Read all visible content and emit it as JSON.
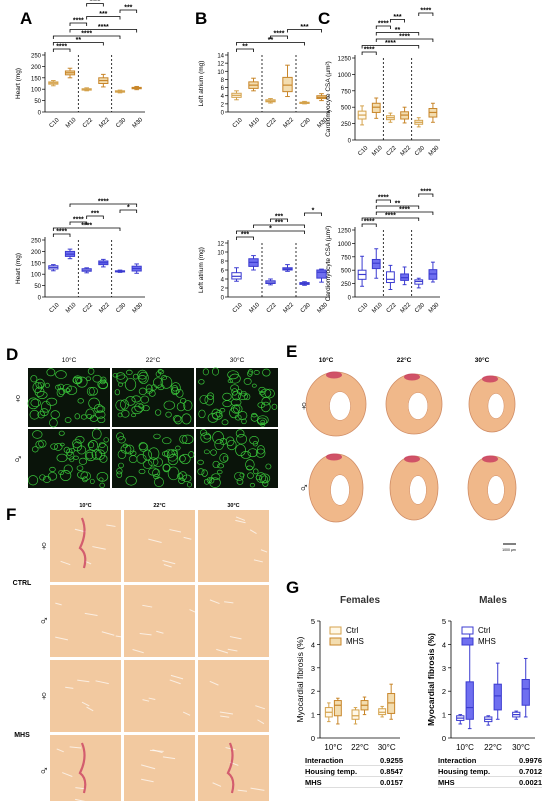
{
  "colors": {
    "female_ctrl": "#d4a24c",
    "female_mhs": "#c8862a",
    "female_fill": "#f3ddb0",
    "male_ctrl": "#3b3bd0",
    "male_mhs": "#4a4ae6",
    "male_fill": "#6f6ff0",
    "stain_green": "#39c43a",
    "tissue": "#f0b88a",
    "stain_pink": "#c8385e",
    "sig": "#000000"
  },
  "panel_letters": [
    "A",
    "B",
    "C",
    "D",
    "E",
    "F",
    "G"
  ],
  "panel_d": {
    "col_labels": [
      "10°C",
      "22°C",
      "30°C"
    ],
    "row_symbols": [
      "♀",
      "♂"
    ]
  },
  "panel_e": {
    "col_labels": [
      "10°C",
      "22°C",
      "30°C"
    ],
    "row_symbols": [
      "♀",
      "♂"
    ],
    "scale_label": "1000 µm"
  },
  "panel_f": {
    "col_labels": [
      "10°C",
      "22°C",
      "30°C"
    ],
    "group_labels": [
      "CTRL",
      "MHS"
    ],
    "row_symbols": [
      "♀",
      "♂",
      "♀",
      "♂"
    ]
  },
  "chart_data": [
    {
      "id": "A-female",
      "type": "box",
      "ylabel": "Heart (mg)",
      "ylim": [
        0,
        250
      ],
      "yticks": [
        0,
        50,
        100,
        150,
        200,
        250
      ],
      "categories": [
        "C10",
        "M10",
        "C22",
        "M22",
        "C30",
        "M30"
      ],
      "boxes": [
        [
          115,
          122,
          127,
          132,
          138
        ],
        [
          150,
          163,
          172,
          180,
          192
        ],
        [
          93,
          96,
          99,
          102,
          106
        ],
        [
          110,
          125,
          138,
          150,
          165
        ],
        [
          84,
          87,
          90,
          93,
          96
        ],
        [
          98,
          102,
          105,
          108,
          112
        ]
      ],
      "brackets": [
        {
          "from": 0,
          "to": 1,
          "label": "****"
        },
        {
          "from": 0,
          "to": 3,
          "label": "**"
        },
        {
          "from": 0,
          "to": 4,
          "label": "****"
        },
        {
          "from": 1,
          "to": 5,
          "label": "****"
        },
        {
          "from": 1,
          "to": 2,
          "label": "****"
        },
        {
          "from": 2,
          "to": 4,
          "label": "***"
        },
        {
          "from": 4,
          "to": 5,
          "label": "***"
        },
        {
          "from": 2,
          "to": 3,
          "label": "****"
        }
      ]
    },
    {
      "id": "B-female",
      "type": "box",
      "ylabel": "Left atrium (mg)",
      "ylim": [
        0,
        14
      ],
      "yticks": [
        0,
        2,
        4,
        6,
        8,
        10,
        12,
        14
      ],
      "categories": [
        "C10",
        "M10",
        "C22",
        "M22",
        "C30",
        "M30"
      ],
      "boxes": [
        [
          3,
          3.6,
          4.1,
          4.6,
          5.2
        ],
        [
          5.2,
          5.8,
          6.6,
          7.4,
          8.3
        ],
        [
          2.2,
          2.5,
          2.7,
          3,
          3.3
        ],
        [
          3.8,
          5,
          6.6,
          8.5,
          11.5
        ],
        [
          2,
          2.1,
          2.3,
          2.4,
          2.6
        ],
        [
          2.8,
          3.3,
          3.6,
          4,
          4.5
        ]
      ],
      "brackets": [
        {
          "from": 0,
          "to": 1,
          "label": "**"
        },
        {
          "from": 0,
          "to": 4,
          "label": "**"
        },
        {
          "from": 2,
          "to": 3,
          "label": "****"
        },
        {
          "from": 3,
          "to": 5,
          "label": "***"
        }
      ]
    },
    {
      "id": "C-female",
      "type": "box",
      "ylabel": "Cardiomyocyte CSA (µm²)",
      "ylim": [
        0,
        1250
      ],
      "yticks": [
        0,
        250,
        500,
        750,
        1000,
        1250
      ],
      "categories": [
        "C10",
        "M10",
        "C22",
        "M22",
        "C30",
        "M30"
      ],
      "boxes": [
        [
          230,
          320,
          380,
          440,
          520
        ],
        [
          330,
          420,
          500,
          560,
          640
        ],
        [
          270,
          310,
          340,
          370,
          410
        ],
        [
          260,
          320,
          380,
          430,
          500
        ],
        [
          200,
          240,
          270,
          300,
          340
        ],
        [
          270,
          350,
          420,
          480,
          560
        ]
      ],
      "brackets": [
        {
          "from": 0,
          "to": 1,
          "label": "****"
        },
        {
          "from": 0,
          "to": 4,
          "label": "****"
        },
        {
          "from": 1,
          "to": 5,
          "label": "****"
        },
        {
          "from": 1,
          "to": 4,
          "label": "**"
        },
        {
          "from": 1,
          "to": 2,
          "label": "****"
        },
        {
          "from": 2,
          "to": 3,
          "label": "***"
        },
        {
          "from": 4,
          "to": 5,
          "label": "****"
        }
      ]
    },
    {
      "id": "A-male",
      "type": "box",
      "ylabel": "Heart (mg)",
      "ylim": [
        0,
        250
      ],
      "yticks": [
        0,
        50,
        100,
        150,
        200,
        250
      ],
      "categories": [
        "C10",
        "M10",
        "C22",
        "M22",
        "C30",
        "M30"
      ],
      "boxes": [
        [
          115,
          123,
          130,
          137,
          142
        ],
        [
          168,
          178,
          188,
          200,
          210
        ],
        [
          106,
          113,
          118,
          124,
          128
        ],
        [
          132,
          142,
          150,
          158,
          165
        ],
        [
          108,
          110,
          113,
          115,
          118
        ],
        [
          104,
          114,
          125,
          135,
          145
        ]
      ],
      "brackets": [
        {
          "from": 0,
          "to": 1,
          "label": "****"
        },
        {
          "from": 0,
          "to": 4,
          "label": "****"
        },
        {
          "from": 1,
          "to": 2,
          "label": "****"
        },
        {
          "from": 2,
          "to": 3,
          "label": "***"
        },
        {
          "from": 4,
          "to": 5,
          "label": "*"
        },
        {
          "from": 1,
          "to": 5,
          "label": "****"
        }
      ]
    },
    {
      "id": "B-male",
      "type": "box",
      "ylabel": "Left atrium (mg)",
      "ylim": [
        0,
        12
      ],
      "yticks": [
        0,
        2,
        4,
        6,
        8,
        10,
        12
      ],
      "categories": [
        "C10",
        "M10",
        "C22",
        "M22",
        "C30",
        "M30"
      ],
      "boxes": [
        [
          3.5,
          4,
          4.6,
          5.4,
          6.5
        ],
        [
          6,
          6.8,
          7.7,
          8.5,
          9.2
        ],
        [
          2.7,
          3,
          3.3,
          3.6,
          4
        ],
        [
          5.7,
          6,
          6.2,
          6.5,
          7.2
        ],
        [
          2.6,
          2.8,
          3,
          3.2,
          3.4
        ],
        [
          3.3,
          4.2,
          5.5,
          6,
          6.2
        ]
      ],
      "brackets": [
        {
          "from": 0,
          "to": 1,
          "label": "***"
        },
        {
          "from": 0,
          "to": 4,
          "label": "*"
        },
        {
          "from": 1,
          "to": 4,
          "label": "***"
        },
        {
          "from": 2,
          "to": 3,
          "label": "***"
        },
        {
          "from": 4,
          "to": 5,
          "label": "*"
        }
      ]
    },
    {
      "id": "C-male",
      "type": "box",
      "ylabel": "Cardiomyocyte CSA (µm²)",
      "ylim": [
        0,
        1250
      ],
      "yticks": [
        0,
        250,
        500,
        750,
        1000,
        1250
      ],
      "categories": [
        "C10",
        "M10",
        "C22",
        "M22",
        "C30",
        "M30"
      ],
      "boxes": [
        [
          200,
          330,
          420,
          500,
          760
        ],
        [
          350,
          530,
          630,
          700,
          900
        ],
        [
          140,
          270,
          330,
          470,
          590
        ],
        [
          230,
          310,
          360,
          430,
          560
        ],
        [
          170,
          240,
          290,
          320,
          350
        ],
        [
          280,
          330,
          430,
          510,
          650
        ]
      ],
      "brackets": [
        {
          "from": 0,
          "to": 1,
          "label": "****"
        },
        {
          "from": 0,
          "to": 4,
          "label": "****"
        },
        {
          "from": 1,
          "to": 5,
          "label": "****"
        },
        {
          "from": 1,
          "to": 4,
          "label": "**"
        },
        {
          "from": 1,
          "to": 2,
          "label": "****"
        },
        {
          "from": 4,
          "to": 5,
          "label": "****"
        }
      ]
    },
    {
      "id": "G-females",
      "type": "box",
      "title": "Females",
      "ylabel": "Myocardial fibrosis (%)",
      "ylim": [
        0,
        5
      ],
      "yticks": [
        0,
        1,
        2,
        3,
        4,
        5
      ],
      "categories": [
        "10°C",
        "22°C",
        "30°C"
      ],
      "series": [
        {
          "name": "Ctrl",
          "boxes": [
            [
              0.7,
              0.9,
              1.1,
              1.3,
              1.5
            ],
            [
              0.6,
              0.8,
              0.95,
              1.2,
              1.3
            ],
            [
              0.9,
              1,
              1.1,
              1.25,
              1.35
            ]
          ]
        },
        {
          "name": "MHS",
          "boxes": [
            [
              0.6,
              0.95,
              1.4,
              1.6,
              1.7
            ],
            [
              1,
              1.2,
              1.4,
              1.6,
              1.75
            ],
            [
              0.8,
              1.05,
              1.5,
              1.9,
              2.3
            ]
          ]
        }
      ],
      "stats": [
        {
          "label": "Interaction",
          "value": "0.9255"
        },
        {
          "label": "Housing temp.",
          "value": "0.8547"
        },
        {
          "label": "MHS",
          "value": "0.0157"
        }
      ]
    },
    {
      "id": "G-males",
      "type": "box",
      "title": "Males",
      "ylabel": "Myocardial fibrosis (%)",
      "ylim": [
        0,
        5
      ],
      "yticks": [
        0,
        1,
        2,
        3,
        4,
        5
      ],
      "categories": [
        "10°C",
        "22°C",
        "30°C"
      ],
      "series": [
        {
          "name": "Ctrl",
          "boxes": [
            [
              0.6,
              0.75,
              0.85,
              0.95,
              1
            ],
            [
              0.55,
              0.7,
              0.8,
              0.9,
              0.95
            ],
            [
              0.8,
              0.9,
              1,
              1.1,
              1.15
            ]
          ]
        },
        {
          "name": "MHS",
          "boxes": [
            [
              0.4,
              0.8,
              1.3,
              2.4,
              4.6
            ],
            [
              0.8,
              1.2,
              1.8,
              2.3,
              3.2
            ],
            [
              0.9,
              1.4,
              2.1,
              2.5,
              3.4
            ]
          ]
        }
      ],
      "stats": [
        {
          "label": "Interaction",
          "value": "0.9976"
        },
        {
          "label": "Housing temp.",
          "value": "0.7012"
        },
        {
          "label": "MHS",
          "value": "0.0021"
        }
      ]
    }
  ]
}
